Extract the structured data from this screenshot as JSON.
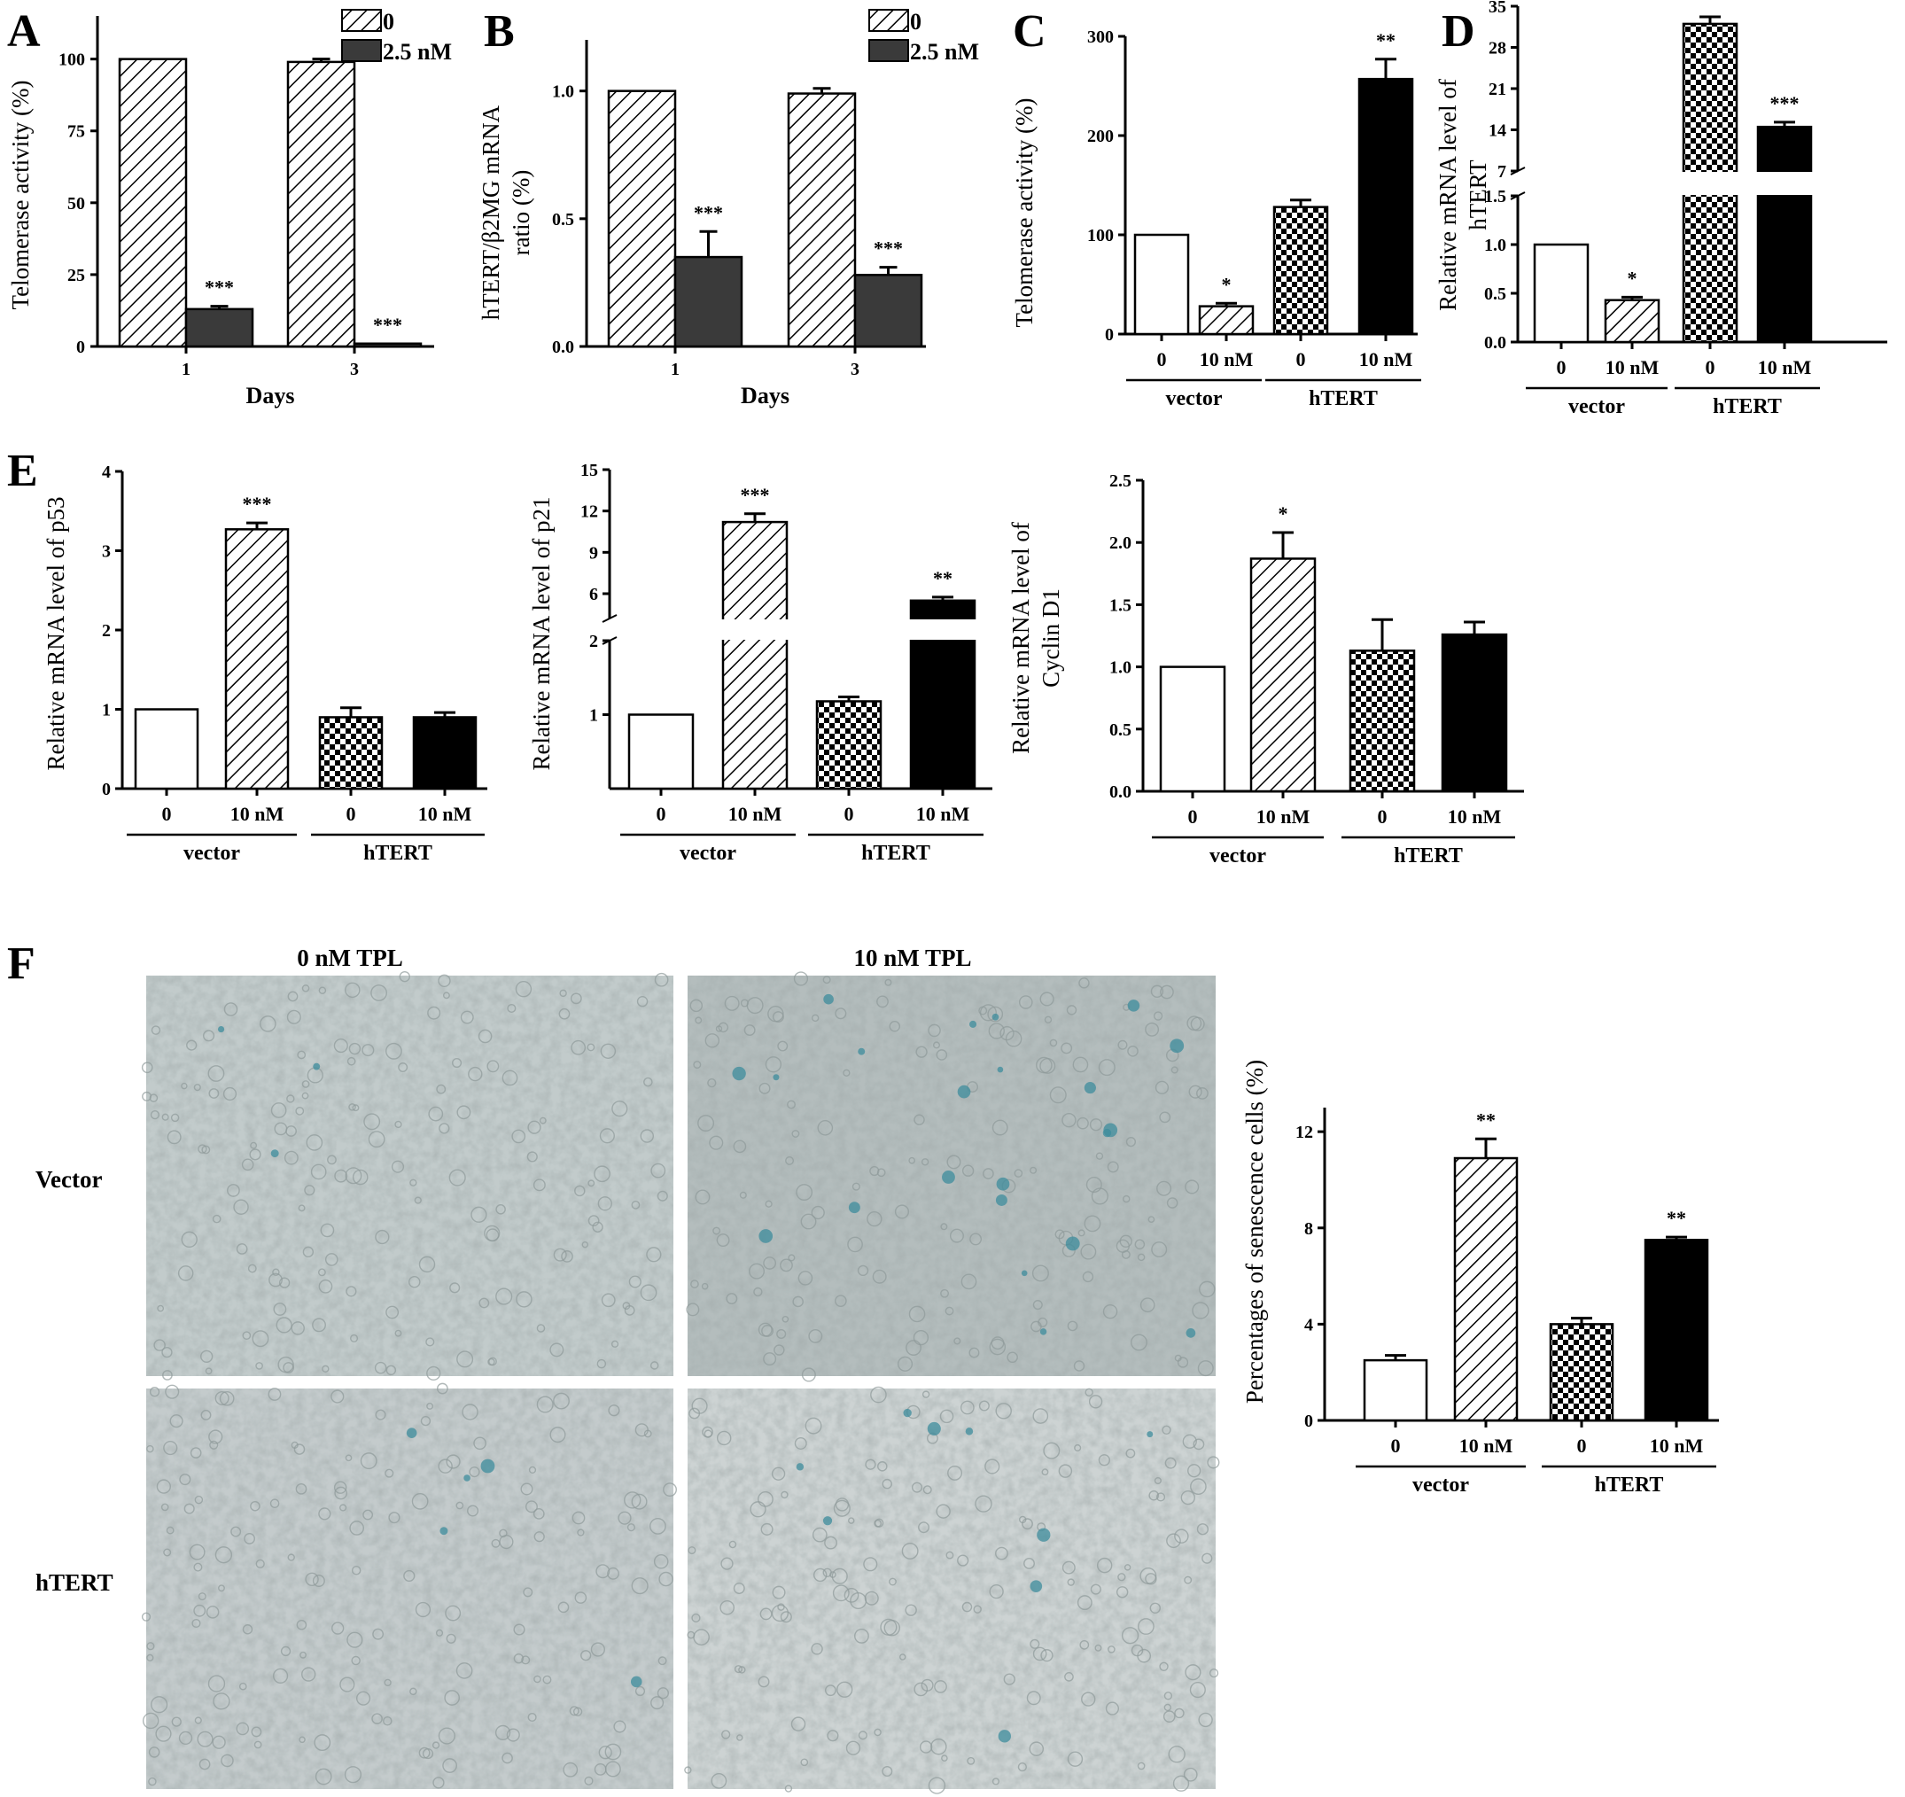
{
  "patterns": {
    "hatch": "hatch",
    "checker": "checker",
    "solid": "solid",
    "empty": "empty",
    "darkgray": "darkgray"
  },
  "colors": {
    "black": "#000000",
    "dark_bar": "#3a3a3a",
    "stain_blue": "#3d8c9c",
    "micro_bg": "#b9c3c3"
  },
  "panels": {
    "A": {
      "label": "A"
    },
    "B": {
      "label": "B"
    },
    "C": {
      "label": "C"
    },
    "D": {
      "label": "D"
    },
    "E": {
      "label": "E"
    },
    "F": {
      "label": "F"
    }
  },
  "chart_data": [
    {
      "id": "A",
      "type": "bar",
      "ylabel": "Telomerase activity (%)",
      "xlabel": "Days",
      "categories": [
        "1",
        "3"
      ],
      "ylim": [
        0,
        115
      ],
      "yticks": [
        0,
        25,
        50,
        75,
        100
      ],
      "legend": {
        "position": "top-right"
      },
      "series": [
        {
          "name": "0",
          "pattern": "hatch",
          "values": [
            100,
            99
          ],
          "errors": [
            0,
            1
          ],
          "sig": [
            "",
            ""
          ]
        },
        {
          "name": "2.5 nM",
          "pattern": "darkgray",
          "values": [
            13,
            1
          ],
          "errors": [
            1,
            0
          ],
          "sig": [
            "***",
            "***"
          ]
        }
      ]
    },
    {
      "id": "B",
      "type": "bar",
      "ylabel": "hTERT/β2MG mRNA ratio (%)",
      "ylabel_lines": [
        "hTERT/β2MG mRNA",
        "ratio (%)"
      ],
      "xlabel": "Days",
      "categories": [
        "1",
        "3"
      ],
      "ylim": [
        0,
        1.2
      ],
      "yticks": [
        "0.0",
        "0.5",
        "1.0"
      ],
      "legend": {
        "position": "top-right"
      },
      "series": [
        {
          "name": "0",
          "pattern": "hatch",
          "values": [
            1.0,
            0.99
          ],
          "errors": [
            0,
            0.02
          ],
          "sig": [
            "",
            ""
          ]
        },
        {
          "name": "2.5 nM",
          "pattern": "darkgray",
          "values": [
            0.35,
            0.28
          ],
          "errors": [
            0.1,
            0.03
          ],
          "sig": [
            "***",
            "***"
          ]
        }
      ]
    },
    {
      "id": "C",
      "type": "bar",
      "ylabel": "Telomerase activity (%)",
      "categories": [
        "0",
        "10 nM",
        "0",
        "10 nM"
      ],
      "groups": [
        "vector",
        "hTERT"
      ],
      "ylim": [
        0,
        300
      ],
      "yticks": [
        0,
        100,
        200,
        300
      ],
      "values": [
        100,
        28,
        128,
        257
      ],
      "errors": [
        0,
        3,
        7,
        20
      ],
      "patterns": [
        "empty",
        "hatch",
        "checker",
        "solid"
      ],
      "sig": [
        "",
        "*",
        "",
        "**"
      ]
    },
    {
      "id": "D",
      "type": "bar",
      "ylabel": "Relative mRNA level of hTERT",
      "ylabel_lines": [
        "Relative mRNA level of",
        "hTERT"
      ],
      "categories": [
        "0",
        "10 nM",
        "0",
        "10 nM"
      ],
      "groups": [
        "vector",
        "hTERT"
      ],
      "axis_break": true,
      "lower_yticks": [
        "0.0",
        "0.5",
        "1.0",
        "1.5"
      ],
      "upper_yticks": [
        "7",
        "14",
        "21",
        "28",
        "35"
      ],
      "values": [
        1.0,
        0.43,
        32,
        14.5
      ],
      "errors": [
        0,
        0.03,
        1.2,
        0.8
      ],
      "patterns": [
        "empty",
        "hatch",
        "checker",
        "solid"
      ],
      "sig": [
        "",
        "*",
        "***",
        "***"
      ]
    },
    {
      "id": "E1",
      "type": "bar",
      "ylabel": "Relative mRNA level of p53",
      "categories": [
        "0",
        "10 nM",
        "0",
        "10 nM"
      ],
      "groups": [
        "vector",
        "hTERT"
      ],
      "ylim": [
        0,
        4
      ],
      "yticks": [
        0,
        1,
        2,
        3,
        4
      ],
      "values": [
        1.0,
        3.27,
        0.9,
        0.9
      ],
      "errors": [
        0,
        0.08,
        0.12,
        0.06
      ],
      "patterns": [
        "empty",
        "hatch",
        "checker",
        "solid"
      ],
      "sig": [
        "",
        "***",
        "",
        ""
      ]
    },
    {
      "id": "E2",
      "type": "bar",
      "ylabel": "Relative mRNA level of p21",
      "categories": [
        "0",
        "10 nM",
        "0",
        "10 nM"
      ],
      "groups": [
        "vector",
        "hTERT"
      ],
      "axis_break": true,
      "lower_yticks": [
        "1",
        "2"
      ],
      "upper_yticks": [
        "6",
        "9",
        "12",
        "15"
      ],
      "values": [
        1.0,
        11.2,
        1.18,
        5.5
      ],
      "errors": [
        0,
        0.6,
        0.06,
        0.25
      ],
      "patterns": [
        "empty",
        "hatch",
        "checker",
        "solid"
      ],
      "sig": [
        "",
        "***",
        "",
        "**"
      ]
    },
    {
      "id": "E3",
      "type": "bar",
      "ylabel": "Relative mRNA level of Cyclin D1",
      "ylabel_lines": [
        "Relative mRNA level of",
        "Cyclin D1"
      ],
      "categories": [
        "0",
        "10 nM",
        "0",
        "10 nM"
      ],
      "groups": [
        "vector",
        "hTERT"
      ],
      "ylim": [
        0,
        2.5
      ],
      "yticks": [
        "0.0",
        "0.5",
        "1.0",
        "1.5",
        "2.0",
        "2.5"
      ],
      "values": [
        1.0,
        1.87,
        1.13,
        1.26
      ],
      "errors": [
        0,
        0.21,
        0.25,
        0.1
      ],
      "patterns": [
        "empty",
        "hatch",
        "checker",
        "solid"
      ],
      "sig": [
        "",
        "*",
        "",
        ""
      ]
    },
    {
      "id": "F",
      "type": "bar",
      "ylabel": "Percentages of senescence cells (%)",
      "categories": [
        "0",
        "10 nM",
        "0",
        "10 nM"
      ],
      "groups": [
        "vector",
        "hTERT"
      ],
      "ylim": [
        0,
        13
      ],
      "yticks": [
        0,
        4,
        8,
        12
      ],
      "values": [
        2.5,
        10.9,
        4.0,
        7.5
      ],
      "errors": [
        0.2,
        0.8,
        0.25,
        0.12
      ],
      "patterns": [
        "empty",
        "hatch",
        "checker",
        "solid"
      ],
      "sig": [
        "",
        "**",
        "",
        "**"
      ]
    }
  ],
  "micrographs": {
    "column_headers": [
      "0 nM TPL",
      "10 nM TPL"
    ],
    "row_labels": [
      "Vector",
      "hTERT"
    ]
  }
}
